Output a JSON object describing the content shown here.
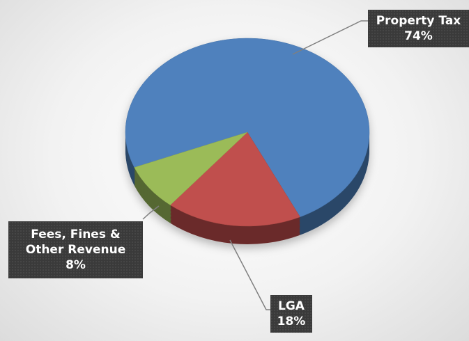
{
  "chart_data": {
    "type": "pie",
    "categories": [
      "Property Tax",
      "LGA",
      "Fees, Fines & Other Revenue"
    ],
    "values": [
      74,
      18,
      8
    ],
    "value_labels": [
      "74%",
      "18%",
      "8%"
    ],
    "colors": [
      "#4f81bd",
      "#c0504d",
      "#9bbb59"
    ]
  }
}
